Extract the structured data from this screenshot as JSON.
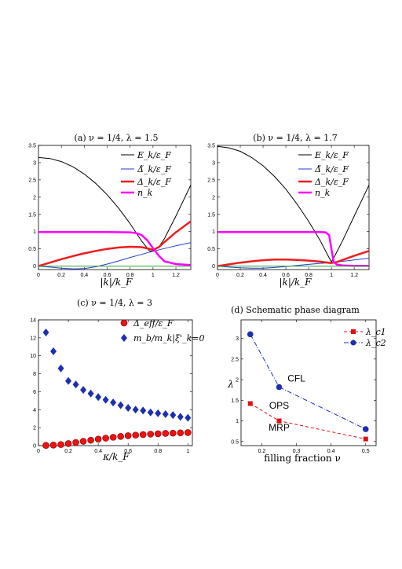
{
  "chart_data": [
    {
      "id": "a",
      "type": "line",
      "title": "(a) ν = 1/4,  λ = 1.5",
      "xlabel": "|k|/k_F",
      "ylabel": "",
      "xlim": [
        0,
        1.33
      ],
      "ylim": [
        -0.1,
        3.5
      ],
      "xticks": [
        "0",
        "0.2",
        "0.4",
        "0.6",
        "0.8",
        "1",
        "1.2"
      ],
      "xtick_values": [
        0,
        0.2,
        0.4,
        0.6,
        0.8,
        1.0,
        1.2
      ],
      "yticks": [
        "0",
        "0.5",
        "1",
        "1.5",
        "2",
        "2.5",
        "3",
        "3.5"
      ],
      "ytick_values": [
        0,
        0.5,
        1,
        1.5,
        2,
        2.5,
        3,
        3.5
      ],
      "legend_position": "top-right",
      "series": [
        {
          "name": "E_k/ε_F",
          "color": "#000000",
          "width": 1,
          "x": [
            0,
            0.1,
            0.2,
            0.3,
            0.4,
            0.5,
            0.6,
            0.7,
            0.8,
            0.9,
            0.97,
            1.0,
            1.05,
            1.1,
            1.2,
            1.33
          ],
          "y": [
            3.15,
            3.12,
            3.03,
            2.88,
            2.67,
            2.4,
            2.07,
            1.68,
            1.23,
            0.73,
            0.44,
            0.43,
            0.55,
            0.8,
            1.45,
            2.35
          ]
        },
        {
          "name": "Δ̃_k/ε_F",
          "color": "#1f3fd0",
          "width": 1,
          "x": [
            0,
            0.1,
            0.2,
            0.3,
            0.4,
            0.5,
            0.6,
            0.7,
            0.8,
            0.9,
            1.0,
            1.1,
            1.2,
            1.33
          ],
          "y": [
            0,
            -0.03,
            -0.06,
            -0.08,
            -0.07,
            -0.02,
            0.06,
            0.15,
            0.25,
            0.34,
            0.43,
            0.51,
            0.59,
            0.68
          ]
        },
        {
          "name": "Δ_k/ε_F",
          "color": "#ee1c1c",
          "width": 2.5,
          "x": [
            0,
            0.1,
            0.2,
            0.3,
            0.4,
            0.5,
            0.6,
            0.7,
            0.8,
            0.9,
            0.97,
            1.0,
            1.05,
            1.1,
            1.2,
            1.33
          ],
          "y": [
            0,
            0.1,
            0.2,
            0.29,
            0.37,
            0.44,
            0.5,
            0.54,
            0.56,
            0.55,
            0.5,
            0.47,
            0.55,
            0.7,
            0.98,
            1.3
          ]
        },
        {
          "name": "n_k",
          "color": "#ff00ff",
          "width": 2.5,
          "x": [
            0,
            0.2,
            0.4,
            0.6,
            0.8,
            0.85,
            0.9,
            0.95,
            1.0,
            1.05,
            1.1,
            1.2,
            1.33
          ],
          "y": [
            0.99,
            0.99,
            0.99,
            0.99,
            0.98,
            0.96,
            0.9,
            0.75,
            0.52,
            0.3,
            0.14,
            0.06,
            0.03
          ]
        },
        {
          "name": "",
          "color": "#2ca02c",
          "width": 1,
          "x": [
            0,
            1.33
          ],
          "y": [
            0,
            0
          ]
        }
      ]
    },
    {
      "id": "b",
      "type": "line",
      "title": "(b) ν = 1/4,  λ = 1.7",
      "xlabel": "|k|/k_F",
      "ylabel": "",
      "xlim": [
        0,
        1.33
      ],
      "ylim": [
        -0.1,
        3.5
      ],
      "xticks": [
        "0",
        "0.2",
        "0.4",
        "0.6",
        "0.8",
        "1",
        "1.2"
      ],
      "xtick_values": [
        0,
        0.2,
        0.4,
        0.6,
        0.8,
        1.0,
        1.2
      ],
      "yticks": [
        "0",
        "0.5",
        "1",
        "1.5",
        "2",
        "2.5",
        "3",
        "3.5"
      ],
      "ytick_values": [
        0,
        0.5,
        1,
        1.5,
        2,
        2.5,
        3,
        3.5
      ],
      "legend_position": "top-right",
      "series": [
        {
          "name": "E_k/ε_F",
          "color": "#000000",
          "width": 1,
          "x": [
            0,
            0.1,
            0.2,
            0.3,
            0.4,
            0.5,
            0.6,
            0.7,
            0.8,
            0.9,
            0.97,
            1.0,
            1.03,
            1.1,
            1.2,
            1.33
          ],
          "y": [
            3.47,
            3.43,
            3.33,
            3.15,
            2.91,
            2.6,
            2.23,
            1.79,
            1.3,
            0.75,
            0.3,
            0.12,
            0.3,
            0.75,
            1.45,
            2.35
          ]
        },
        {
          "name": "Δ̃_k/ε_F",
          "color": "#1f3fd0",
          "width": 1,
          "x": [
            0,
            0.1,
            0.2,
            0.3,
            0.4,
            0.5,
            0.6,
            0.7,
            0.8,
            0.9,
            1.0,
            1.1,
            1.2,
            1.33
          ],
          "y": [
            0,
            -0.03,
            -0.05,
            -0.06,
            -0.06,
            -0.04,
            -0.01,
            0.02,
            0.05,
            0.08,
            0.1,
            0.14,
            0.18,
            0.23
          ]
        },
        {
          "name": "Δ_k/ε_F",
          "color": "#ee1c1c",
          "width": 2.5,
          "x": [
            0,
            0.1,
            0.2,
            0.3,
            0.4,
            0.5,
            0.6,
            0.7,
            0.8,
            0.9,
            0.97,
            1.0,
            1.05,
            1.1,
            1.2,
            1.33
          ],
          "y": [
            0,
            0.05,
            0.1,
            0.14,
            0.17,
            0.19,
            0.19,
            0.18,
            0.16,
            0.13,
            0.1,
            0.09,
            0.12,
            0.18,
            0.3,
            0.44
          ]
        },
        {
          "name": "n_k",
          "color": "#ff00ff",
          "width": 2.5,
          "x": [
            0,
            0.2,
            0.4,
            0.6,
            0.8,
            0.9,
            0.95,
            0.98,
            1.0,
            1.02,
            1.05,
            1.1,
            1.2,
            1.33
          ],
          "y": [
            0.99,
            0.99,
            0.99,
            0.99,
            0.99,
            0.99,
            0.98,
            0.9,
            0.5,
            0.12,
            0.04,
            0.02,
            0.01,
            0.01
          ]
        },
        {
          "name": "",
          "color": "#2ca02c",
          "width": 1,
          "x": [
            0,
            1.33
          ],
          "y": [
            0,
            0
          ]
        }
      ]
    },
    {
      "id": "c",
      "type": "scatter",
      "title": "(c) ν = 1/4,  λ = 3",
      "xlabel": "κ/k_F",
      "ylabel": "",
      "xlim": [
        0,
        1.03
      ],
      "ylim": [
        0,
        14
      ],
      "xticks": [
        "0",
        "0.2",
        "0.4",
        "0.6",
        "0.8",
        "1"
      ],
      "xtick_values": [
        0,
        0.2,
        0.4,
        0.6,
        0.8,
        1.0
      ],
      "yticks": [
        "0",
        "2",
        "4",
        "6",
        "8",
        "10",
        "12",
        "14"
      ],
      "ytick_values": [
        0,
        2,
        4,
        6,
        8,
        10,
        12,
        14
      ],
      "legend_position": "top-right",
      "series": [
        {
          "name": "Δ_eff/ε_F",
          "marker": "circle",
          "color": "#ee1111",
          "x": [
            0.05,
            0.1,
            0.15,
            0.2,
            0.25,
            0.3,
            0.35,
            0.4,
            0.45,
            0.5,
            0.55,
            0.6,
            0.65,
            0.7,
            0.75,
            0.8,
            0.85,
            0.9,
            0.95,
            1.0
          ],
          "y": [
            0.03,
            0.06,
            0.12,
            0.22,
            0.35,
            0.48,
            0.6,
            0.72,
            0.83,
            0.93,
            1.02,
            1.1,
            1.17,
            1.23,
            1.28,
            1.32,
            1.36,
            1.39,
            1.42,
            1.45
          ]
        },
        {
          "name": "m_b/m_k|ξ'_k=0",
          "marker": "diamond",
          "color": "#1c2fb0",
          "x": [
            0.05,
            0.1,
            0.15,
            0.2,
            0.25,
            0.3,
            0.35,
            0.4,
            0.45,
            0.5,
            0.55,
            0.6,
            0.65,
            0.7,
            0.75,
            0.8,
            0.85,
            0.9,
            0.95,
            1.0
          ],
          "y": [
            12.6,
            10.5,
            8.6,
            7.2,
            6.8,
            6.2,
            5.8,
            5.4,
            5.1,
            4.8,
            4.5,
            4.2,
            4.0,
            3.9,
            3.7,
            3.6,
            3.5,
            3.4,
            3.2,
            3.1
          ]
        }
      ]
    },
    {
      "id": "d",
      "type": "line",
      "title": "(d) Schematic phase diagram",
      "xlabel": "filling fraction ν",
      "ylabel": "λ",
      "xlim": [
        0.14,
        0.53
      ],
      "ylim": [
        0.4,
        3.45
      ],
      "xticks": [
        "0.2",
        "0.3",
        "0.4",
        "0.5"
      ],
      "xtick_values": [
        0.2,
        0.3,
        0.4,
        0.5
      ],
      "yticks": [
        "0.5",
        "1",
        "1.5",
        "2",
        "2.5",
        "3"
      ],
      "ytick_values": [
        0.5,
        1,
        1.5,
        2,
        2.5,
        3
      ],
      "legend_position": "top-right",
      "series": [
        {
          "name": "λ_c1",
          "marker": "square",
          "color": "#dd1111",
          "dash": "4,3",
          "x": [
            0.1667,
            0.25,
            0.5
          ],
          "y": [
            1.42,
            1.0,
            0.56
          ]
        },
        {
          "name": "λ_c2",
          "marker": "circle",
          "color": "#1c2fb0",
          "dash": "6,2,1,2",
          "x": [
            0.1667,
            0.25,
            0.5
          ],
          "y": [
            3.1,
            1.82,
            0.8
          ]
        }
      ],
      "annotations": [
        {
          "text": "CFL",
          "x": 0.3,
          "y": 1.95
        },
        {
          "text": "OPS",
          "x": 0.25,
          "y": 1.3
        },
        {
          "text": "MRP",
          "x": 0.25,
          "y": 0.76
        }
      ]
    }
  ]
}
